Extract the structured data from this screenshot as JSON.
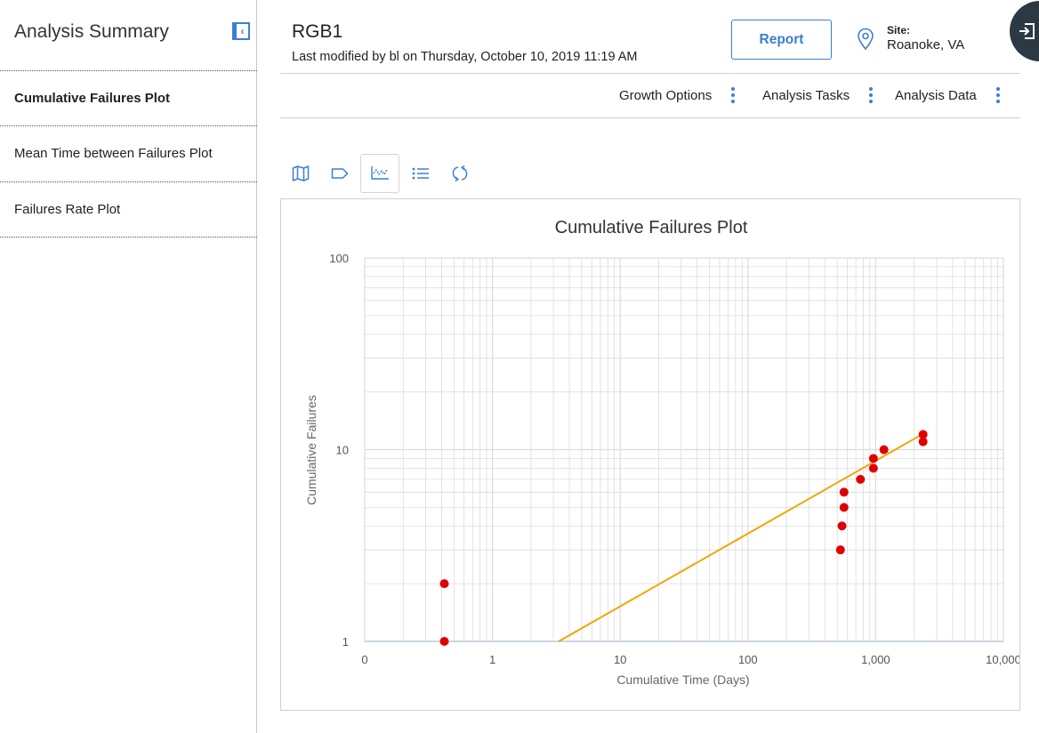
{
  "sidebar": {
    "title": "Analysis Summary",
    "collapse_icon": "chevron-left-icon",
    "items": [
      {
        "label": "Cumulative Failures Plot",
        "active": true
      },
      {
        "label": "Mean Time between Failures Plot",
        "active": false
      },
      {
        "label": "Failures Rate Plot",
        "active": false
      }
    ]
  },
  "header": {
    "title": "RGB1",
    "last_modified": "Last modified by bl on Thursday, October 10, 2019 11:19 AM",
    "report_label": "Report",
    "site_label": "Site:",
    "site_value": "Roanoke, VA",
    "site_icon": "location-pin-icon",
    "corner_icon": "exit-icon"
  },
  "menu": {
    "items": [
      {
        "label": "Growth Options"
      },
      {
        "label": "Analysis Tasks"
      },
      {
        "label": "Analysis Data"
      }
    ]
  },
  "toolbar": {
    "icons": [
      "map-icon",
      "tag-icon",
      "plot-icon",
      "list-icon",
      "refresh-icon"
    ],
    "active": "plot-icon"
  },
  "colors": {
    "accent": "#3b7fd4",
    "points": "#e00000",
    "fit_line": "#f2a50c",
    "grid": "#dcdcdc"
  },
  "chart_data": {
    "type": "scatter",
    "title": "Cumulative Failures Plot",
    "xlabel": "Cumulative Time (Days)",
    "ylabel": "Cumulative Failures",
    "x_scale": "log",
    "y_scale": "log",
    "xlim": [
      0.1,
      10000
    ],
    "ylim": [
      1,
      100
    ],
    "x_ticks": [
      0.1,
      1,
      10,
      100,
      1000,
      10000
    ],
    "x_tick_labels": [
      "0",
      "1",
      "10",
      "100",
      "1,000",
      "10,000"
    ],
    "y_ticks": [
      1,
      10,
      100
    ],
    "y_tick_labels": [
      "1",
      "10",
      "100"
    ],
    "grid": true,
    "series": [
      {
        "kind": "points",
        "x": [
          0.42,
          0.42,
          530,
          545,
          565,
          565,
          760,
          960,
          960,
          1160,
          2350,
          2350
        ],
        "y": [
          1,
          2,
          3,
          4,
          5,
          6,
          7,
          8,
          9,
          10,
          11,
          12
        ]
      },
      {
        "kind": "fit_line",
        "x": [
          3.3,
          2350
        ],
        "y": [
          1,
          12.1
        ]
      }
    ]
  }
}
